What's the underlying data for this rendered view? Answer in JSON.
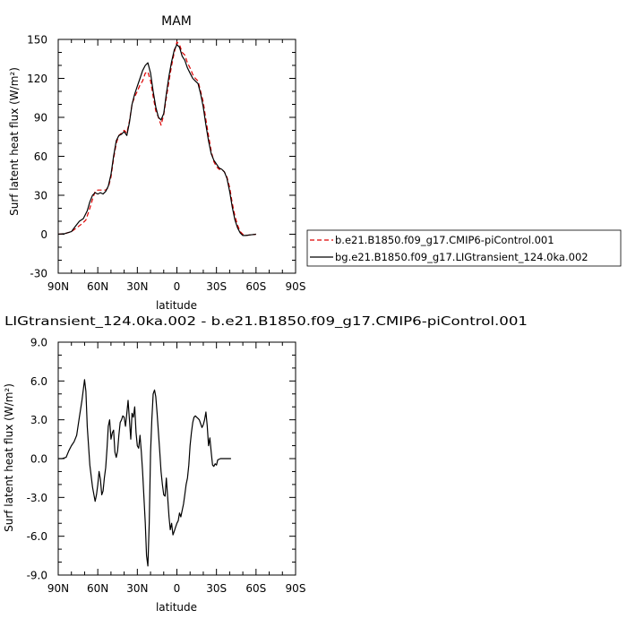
{
  "chart_data": [
    {
      "type": "line",
      "title": "MAM",
      "xlabel": "latitude",
      "ylabel": "Surf latent heat flux (W/m²)",
      "xlim": [
        90,
        -90
      ],
      "ylim": [
        -30,
        150
      ],
      "xticks": [
        90,
        60,
        30,
        0,
        -30,
        -60,
        -90
      ],
      "xtick_labels": [
        "90N",
        "60N",
        "30N",
        "0",
        "30S",
        "60S",
        "90S"
      ],
      "yticks": [
        -30,
        0,
        30,
        60,
        90,
        120,
        150
      ],
      "ytick_labels": [
        "-30",
        "0",
        "30",
        "60",
        "90",
        "120",
        "150"
      ],
      "legend": "right",
      "series": [
        {
          "name": "b.e21.B1850.f09_g17.CMIP6-piControl.001",
          "color": "#dd0000",
          "style": "dashed",
          "points": [
            [
              90,
              0
            ],
            [
              85,
              0.5
            ],
            [
              80,
              2
            ],
            [
              76,
              5
            ],
            [
              72,
              8
            ],
            [
              69,
              11
            ],
            [
              66,
              20
            ],
            [
              64,
              27
            ],
            [
              62,
              33
            ],
            [
              60,
              34
            ],
            [
              57,
              34
            ],
            [
              54,
              34
            ],
            [
              52,
              36
            ],
            [
              50,
              44
            ],
            [
              48,
              58
            ],
            [
              46,
              70
            ],
            [
              44,
              76
            ],
            [
              42,
              78
            ],
            [
              40,
              80
            ],
            [
              38,
              78
            ],
            [
              36,
              87
            ],
            [
              34,
              100
            ],
            [
              32,
              106
            ],
            [
              30,
              110
            ],
            [
              28,
              115
            ],
            [
              26,
              118
            ],
            [
              24,
              124
            ],
            [
              22,
              125
            ],
            [
              20,
              118
            ],
            [
              18,
              106
            ],
            [
              16,
              95
            ],
            [
              14,
              90
            ],
            [
              12,
              84
            ],
            [
              10,
              92
            ],
            [
              8,
              105
            ],
            [
              6,
              118
            ],
            [
              4,
              130
            ],
            [
              2,
              140
            ],
            [
              0,
              148
            ],
            [
              -2,
              146
            ],
            [
              -4,
              140
            ],
            [
              -6,
              138
            ],
            [
              -8,
              132
            ],
            [
              -10,
              128
            ],
            [
              -12,
              123
            ],
            [
              -14,
              120
            ],
            [
              -16,
              118
            ],
            [
              -18,
              110
            ],
            [
              -20,
              102
            ],
            [
              -22,
              88
            ],
            [
              -24,
              76
            ],
            [
              -26,
              64
            ],
            [
              -28,
              56
            ],
            [
              -30,
              52
            ],
            [
              -32,
              50
            ],
            [
              -34,
              50
            ],
            [
              -36,
              48
            ],
            [
              -38,
              44
            ],
            [
              -40,
              36
            ],
            [
              -42,
              24
            ],
            [
              -44,
              14
            ],
            [
              -46,
              7
            ],
            [
              -48,
              2
            ],
            [
              -50,
              0
            ],
            [
              -52,
              -1
            ],
            [
              -56,
              -0.5
            ],
            [
              -60,
              0
            ]
          ]
        },
        {
          "name": "bg.e21.B1850.f09_g17.LIGtransient_124.0ka.002",
          "color": "#000000",
          "style": "solid",
          "points": [
            [
              90,
              0
            ],
            [
              85,
              0.5
            ],
            [
              80,
              2
            ],
            [
              77,
              6
            ],
            [
              74,
              10
            ],
            [
              71,
              12
            ],
            [
              68,
              18
            ],
            [
              66,
              25
            ],
            [
              64,
              30
            ],
            [
              62,
              32
            ],
            [
              60,
              31
            ],
            [
              58,
              32
            ],
            [
              56,
              31
            ],
            [
              54,
              33
            ],
            [
              52,
              37
            ],
            [
              50,
              46
            ],
            [
              48,
              60
            ],
            [
              46,
              72
            ],
            [
              44,
              76
            ],
            [
              42,
              77
            ],
            [
              40,
              79
            ],
            [
              38,
              76
            ],
            [
              36,
              86
            ],
            [
              34,
              100
            ],
            [
              32,
              108
            ],
            [
              30,
              114
            ],
            [
              28,
              120
            ],
            [
              26,
              126
            ],
            [
              24,
              130
            ],
            [
              22,
              132
            ],
            [
              20,
              124
            ],
            [
              18,
              110
            ],
            [
              16,
              98
            ],
            [
              14,
              90
            ],
            [
              12,
              88
            ],
            [
              10,
              93
            ],
            [
              8,
              108
            ],
            [
              6,
              122
            ],
            [
              4,
              133
            ],
            [
              2,
              142
            ],
            [
              0,
              146
            ],
            [
              -2,
              144
            ],
            [
              -4,
              137
            ],
            [
              -6,
              134
            ],
            [
              -8,
              128
            ],
            [
              -10,
              124
            ],
            [
              -12,
              120
            ],
            [
              -14,
              118
            ],
            [
              -16,
              116
            ],
            [
              -18,
              108
            ],
            [
              -20,
              98
            ],
            [
              -22,
              84
            ],
            [
              -24,
              72
            ],
            [
              -26,
              62
            ],
            [
              -28,
              57
            ],
            [
              -30,
              54
            ],
            [
              -32,
              51
            ],
            [
              -34,
              50
            ],
            [
              -36,
              48
            ],
            [
              -38,
              43
            ],
            [
              -40,
              33
            ],
            [
              -42,
              21
            ],
            [
              -44,
              11
            ],
            [
              -46,
              5
            ],
            [
              -48,
              1
            ],
            [
              -50,
              -1
            ],
            [
              -52,
              -1
            ],
            [
              -56,
              -0.5
            ],
            [
              -60,
              0
            ]
          ]
        }
      ]
    },
    {
      "type": "line",
      "title": "LIGtransient_124.0ka.002 - b.e21.B1850.f09_g17.CMIP6-piControl.001",
      "xlabel": "latitude",
      "ylabel": "Surf latent heat flux (W/m²)",
      "xlim": [
        90,
        -90
      ],
      "ylim": [
        -9,
        9
      ],
      "xticks": [
        90,
        60,
        30,
        0,
        -30,
        -60,
        -90
      ],
      "xtick_labels": [
        "90N",
        "60N",
        "30N",
        "0",
        "30S",
        "60S",
        "90S"
      ],
      "yticks": [
        -9,
        -6,
        -3,
        0,
        3,
        6,
        9
      ],
      "ytick_labels": [
        "-9.0",
        "-6.0",
        "-3.0",
        "0.0",
        "3.0",
        "6.0",
        "9.0"
      ],
      "series": [
        {
          "name": "",
          "color": "#000000",
          "style": "solid",
          "points": [
            [
              90,
              0
            ],
            [
              87,
              0
            ],
            [
              84,
              0.1
            ],
            [
              82,
              0.6
            ],
            [
              80,
              1.0
            ],
            [
              78,
              1.3
            ],
            [
              76,
              1.8
            ],
            [
              74,
              3.2
            ],
            [
              72,
              4.5
            ],
            [
              70,
              6.1
            ],
            [
              69,
              5.2
            ],
            [
              68,
              2.5
            ],
            [
              66,
              -0.5
            ],
            [
              64,
              -2.2
            ],
            [
              62,
              -3.3
            ],
            [
              61,
              -2.8
            ],
            [
              60,
              -2.0
            ],
            [
              59,
              -1.0
            ],
            [
              58,
              -1.6
            ],
            [
              57,
              -2.8
            ],
            [
              56,
              -2.5
            ],
            [
              55,
              -1.5
            ],
            [
              54,
              -0.7
            ],
            [
              53,
              0.8
            ],
            [
              52,
              2.5
            ],
            [
              51,
              3.0
            ],
            [
              50,
              1.5
            ],
            [
              49,
              2.0
            ],
            [
              48,
              2.2
            ],
            [
              47,
              0.5
            ],
            [
              46,
              0.1
            ],
            [
              45,
              0.6
            ],
            [
              44,
              1.8
            ],
            [
              43,
              2.8
            ],
            [
              42,
              3.0
            ],
            [
              41,
              3.3
            ],
            [
              40,
              3.2
            ],
            [
              39,
              2.5
            ],
            [
              38,
              3.5
            ],
            [
              37,
              4.5
            ],
            [
              36,
              3.0
            ],
            [
              35,
              1.5
            ],
            [
              34,
              3.5
            ],
            [
              33,
              3.2
            ],
            [
              32,
              4.0
            ],
            [
              31,
              2.0
            ],
            [
              30,
              1.0
            ],
            [
              29,
              0.8
            ],
            [
              28,
              1.8
            ],
            [
              27,
              0.5
            ],
            [
              26,
              -1.0
            ],
            [
              25,
              -3.0
            ],
            [
              24,
              -5.0
            ],
            [
              23,
              -7.5
            ],
            [
              22,
              -8.3
            ],
            [
              21,
              -5.0
            ],
            [
              20,
              0.5
            ],
            [
              19,
              3.0
            ],
            [
              18,
              5.0
            ],
            [
              17,
              5.3
            ],
            [
              16,
              4.8
            ],
            [
              15,
              3.5
            ],
            [
              14,
              2.0
            ],
            [
              13,
              0.5
            ],
            [
              12,
              -1.0
            ],
            [
              11,
              -2.0
            ],
            [
              10,
              -2.8
            ],
            [
              9,
              -2.9
            ],
            [
              8,
              -1.5
            ],
            [
              7,
              -3.0
            ],
            [
              6,
              -4.5
            ],
            [
              5,
              -5.5
            ],
            [
              4,
              -5.0
            ],
            [
              3,
              -5.9
            ],
            [
              2,
              -5.6
            ],
            [
              1,
              -5.3
            ],
            [
              0,
              -5.0
            ],
            [
              -1,
              -4.8
            ],
            [
              -2,
              -4.2
            ],
            [
              -3,
              -4.5
            ],
            [
              -4,
              -4.0
            ],
            [
              -5,
              -3.5
            ],
            [
              -6,
              -2.8
            ],
            [
              -7,
              -2.0
            ],
            [
              -8,
              -1.5
            ],
            [
              -9,
              -0.5
            ],
            [
              -10,
              1.0
            ],
            [
              -11,
              2.0
            ],
            [
              -12,
              2.8
            ],
            [
              -13,
              3.2
            ],
            [
              -14,
              3.3
            ],
            [
              -15,
              3.2
            ],
            [
              -16,
              3.1
            ],
            [
              -17,
              3.0
            ],
            [
              -18,
              2.7
            ],
            [
              -19,
              2.4
            ],
            [
              -20,
              2.6
            ],
            [
              -21,
              3.0
            ],
            [
              -22,
              3.6
            ],
            [
              -23,
              2.5
            ],
            [
              -24,
              1.0
            ],
            [
              -25,
              1.6
            ],
            [
              -26,
              0.5
            ],
            [
              -27,
              -0.5
            ],
            [
              -28,
              -0.6
            ],
            [
              -29,
              -0.4
            ],
            [
              -30,
              -0.5
            ],
            [
              -31,
              -0.1
            ],
            [
              -33,
              0
            ],
            [
              -35,
              0
            ],
            [
              -37,
              0
            ],
            [
              -39,
              0
            ],
            [
              -41,
              0
            ]
          ]
        }
      ]
    }
  ]
}
